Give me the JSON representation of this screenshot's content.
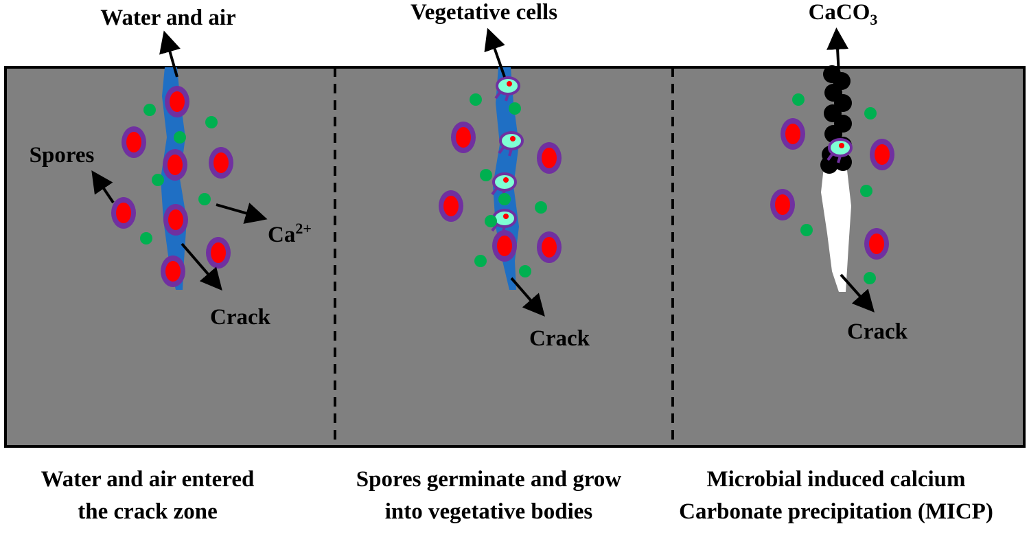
{
  "panels": [
    {
      "labels": [
        {
          "text": "Water and air"
        },
        {
          "text": "Spores"
        },
        {
          "text": "Ca",
          "sup": "2+"
        },
        {
          "text": "Crack"
        }
      ],
      "caption": [
        "Water and air entered",
        "the crack zone"
      ]
    },
    {
      "labels": [
        {
          "text": "Vegetative cells"
        },
        {
          "text": "Crack"
        }
      ],
      "caption": [
        "Spores  germinate and grow",
        "into  vegetative bodies"
      ]
    },
    {
      "labels": [
        {
          "text": "CaCO",
          "sub": "3"
        },
        {
          "text": "Crack"
        }
      ],
      "caption": [
        "Microbial induced calcium",
        "Carbonate precipitation (MICP)"
      ]
    }
  ]
}
